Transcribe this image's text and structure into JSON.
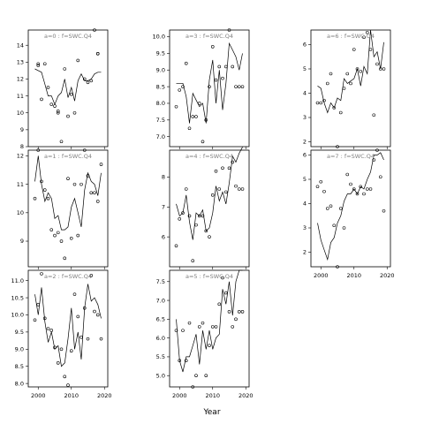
{
  "chart_data": {
    "type": "scatter",
    "xlabel": "Year",
    "x_ticks": [
      2000,
      2010,
      2020
    ],
    "xlim": [
      1997,
      2021
    ],
    "panels": [
      {
        "title": "a=0  :  f=SWC.Q4",
        "col": 0,
        "row": 0,
        "show_x_ticks": false,
        "ylim": [
          8,
          14.9
        ],
        "y_ticks": [
          8,
          9,
          10,
          11,
          12,
          13,
          14
        ],
        "line": {
          "x": [
            1999,
            2000,
            2001,
            2002,
            2003,
            2004,
            2005,
            2006,
            2007,
            2008,
            2009,
            2010,
            2011,
            2012,
            2013,
            2014,
            2015,
            2016,
            2017,
            2018,
            2019
          ],
          "y": [
            12.6,
            12.5,
            12.4,
            11.7,
            11.0,
            11.0,
            10.5,
            11.0,
            11.2,
            12.0,
            10.9,
            11.5,
            10.7,
            11.9,
            12.3,
            11.9,
            11.9,
            12.0,
            12.3,
            12.4,
            12.4
          ]
        },
        "points": {
          "x": [
            2000,
            2000,
            2001,
            2002,
            2003,
            2004,
            2005,
            2006,
            2006,
            2007,
            2008,
            2009,
            2010,
            2011,
            2012,
            2014,
            2015,
            2016,
            2017,
            2018,
            2018
          ],
          "y": [
            12.9,
            12.8,
            10.8,
            12.9,
            11.5,
            10.5,
            10.4,
            10.1,
            10.0,
            8.3,
            12.6,
            9.8,
            11.1,
            10.0,
            13.1,
            12.0,
            11.8,
            11.9,
            14.9,
            13.5,
            13.5
          ]
        }
      },
      {
        "title": "a=1  :  f=SWC.Q4",
        "col": 0,
        "row": 1,
        "show_x_ticks": false,
        "ylim": [
          8.1,
          12.2
        ],
        "y_ticks": [
          9,
          10,
          11,
          12
        ],
        "line": {
          "x": [
            1999,
            2000,
            2001,
            2002,
            2003,
            2004,
            2005,
            2006,
            2007,
            2008,
            2009,
            2010,
            2011,
            2012,
            2013,
            2014,
            2015,
            2016,
            2017,
            2018,
            2019
          ],
          "y": [
            11.1,
            12.0,
            11.0,
            10.4,
            10.7,
            10.5,
            9.8,
            9.9,
            9.4,
            9.4,
            9.5,
            10.2,
            10.5,
            10.0,
            9.5,
            10.8,
            11.4,
            11.1,
            11.0,
            10.6,
            11.4
          ]
        },
        "points": {
          "x": [
            1999,
            2000,
            2001,
            2002,
            2003,
            2004,
            2005,
            2006,
            2007,
            2008,
            2009,
            2010,
            2011,
            2012,
            2013,
            2014,
            2015,
            2016,
            2017,
            2018,
            2019
          ],
          "y": [
            10.5,
            12.2,
            11.1,
            10.8,
            10.5,
            9.4,
            9.2,
            9.3,
            9.0,
            8.4,
            11.2,
            9.1,
            11.0,
            9.2,
            11.0,
            12.2,
            11.3,
            10.7,
            10.7,
            10.4,
            11.7
          ]
        }
      },
      {
        "title": "a=2  :  f=SWC.Q4",
        "col": 0,
        "row": 2,
        "show_x_ticks": true,
        "ylim": [
          7.9,
          11.3
        ],
        "y_ticks": [
          8.0,
          8.5,
          9.0,
          9.5,
          10.0,
          10.5,
          11.0
        ],
        "line": {
          "x": [
            1999,
            2000,
            2001,
            2002,
            2003,
            2004,
            2005,
            2006,
            2007,
            2008,
            2009,
            2010,
            2011,
            2012,
            2013,
            2014,
            2015,
            2016,
            2017,
            2018,
            2019
          ],
          "y": [
            10.6,
            10.0,
            10.8,
            9.8,
            9.2,
            9.5,
            9.0,
            9.1,
            8.5,
            8.6,
            9.3,
            10.2,
            9.0,
            9.5,
            8.7,
            10.2,
            10.9,
            10.4,
            10.5,
            10.3,
            9.9
          ]
        },
        "points": {
          "x": [
            1999,
            2000,
            2001,
            2002,
            2003,
            2004,
            2005,
            2006,
            2007,
            2008,
            2009,
            2010,
            2011,
            2012,
            2013,
            2014,
            2015,
            2016,
            2017,
            2018,
            2019
          ],
          "y": [
            9.85,
            10.3,
            11.2,
            9.9,
            9.6,
            9.55,
            9.05,
            8.6,
            9.0,
            8.2,
            7.95,
            8.95,
            10.6,
            9.95,
            9.35,
            10.2,
            9.3,
            11.15,
            10.1,
            10.0,
            9.3
          ]
        }
      },
      {
        "title": "a=3  :  f=SWC.Q4",
        "col": 1,
        "row": 0,
        "show_x_ticks": false,
        "ylim": [
          6.7,
          10.2
        ],
        "y_ticks": [
          7.0,
          7.5,
          8.0,
          8.5,
          9.0,
          9.5,
          10.0
        ],
        "line": {
          "x": [
            1999,
            2000,
            2001,
            2002,
            2003,
            2004,
            2005,
            2006,
            2007,
            2008,
            2009,
            2010,
            2011,
            2012,
            2013,
            2014,
            2015,
            2016,
            2017,
            2018,
            2019
          ],
          "y": [
            8.6,
            8.6,
            8.6,
            8.2,
            7.4,
            8.3,
            8.1,
            7.9,
            8.0,
            7.4,
            8.7,
            9.3,
            8.0,
            9.0,
            7.8,
            8.6,
            9.8,
            9.6,
            9.4,
            9.0,
            9.5
          ]
        },
        "points": {
          "x": [
            1999,
            2000,
            2001,
            2002,
            2003,
            2004,
            2005,
            2006,
            2007,
            2008,
            2009,
            2010,
            2011,
            2012,
            2013,
            2014,
            2015,
            2016,
            2017,
            2018,
            2019
          ],
          "y": [
            7.9,
            8.4,
            8.5,
            9.2,
            7.25,
            7.6,
            7.6,
            8.0,
            6.85,
            7.5,
            8.5,
            9.7,
            8.7,
            9.1,
            8.75,
            9.1,
            10.2,
            9.1,
            8.5,
            8.5,
            8.5
          ]
        }
      },
      {
        "title": "a=4  :  f=SWC.Q4",
        "col": 1,
        "row": 1,
        "show_x_ticks": false,
        "ylim": [
          5.0,
          8.9
        ],
        "y_ticks": [
          6,
          7,
          8
        ],
        "line": {
          "x": [
            1999,
            2000,
            2001,
            2002,
            2003,
            2004,
            2005,
            2006,
            2007,
            2008,
            2009,
            2010,
            2011,
            2012,
            2013,
            2014,
            2015,
            2016,
            2017,
            2018,
            2019
          ],
          "y": [
            7.1,
            6.7,
            6.8,
            7.4,
            6.5,
            5.9,
            6.8,
            6.7,
            6.9,
            6.2,
            6.3,
            6.8,
            7.7,
            7.2,
            7.5,
            7.1,
            7.8,
            8.7,
            8.5,
            8.8,
            9.0
          ]
        },
        "points": {
          "x": [
            1999,
            2000,
            2001,
            2002,
            2003,
            2004,
            2005,
            2006,
            2007,
            2008,
            2009,
            2010,
            2011,
            2012,
            2013,
            2014,
            2015,
            2016,
            2017,
            2018,
            2019
          ],
          "y": [
            5.7,
            6.6,
            6.8,
            7.6,
            6.7,
            5.2,
            6.4,
            6.7,
            6.7,
            6.2,
            6.0,
            7.4,
            8.2,
            7.6,
            8.3,
            7.5,
            8.3,
            8.5,
            7.7,
            7.6,
            7.6
          ]
        }
      },
      {
        "title": "a=5  :  f=SWC.Q4",
        "col": 1,
        "row": 2,
        "show_x_ticks": true,
        "ylim": [
          4.7,
          7.8
        ],
        "y_ticks": [
          5.0,
          5.5,
          6.0,
          6.5,
          7.0,
          7.5
        ],
        "line": {
          "x": [
            1999,
            2000,
            2001,
            2002,
            2003,
            2004,
            2005,
            2006,
            2007,
            2008,
            2009,
            2010,
            2011,
            2012,
            2013,
            2014,
            2015,
            2016,
            2017,
            2018,
            2019
          ],
          "y": [
            6.5,
            5.4,
            5.1,
            5.5,
            5.5,
            5.8,
            6.1,
            5.3,
            6.2,
            5.7,
            6.2,
            5.7,
            6.0,
            6.1,
            7.3,
            6.9,
            7.5,
            6.6,
            7.5,
            7.8,
            7.8
          ]
        },
        "points": {
          "x": [
            1999,
            2000,
            2001,
            2002,
            2003,
            2004,
            2005,
            2006,
            2007,
            2008,
            2009,
            2010,
            2011,
            2012,
            2013,
            2014,
            2015,
            2016,
            2017,
            2018,
            2019
          ],
          "y": [
            6.2,
            5.4,
            6.2,
            5.4,
            6.4,
            4.7,
            5.0,
            6.3,
            6.4,
            5.0,
            5.8,
            6.3,
            6.3,
            6.9,
            7.6,
            7.2,
            6.7,
            6.3,
            6.5,
            6.7,
            6.7
          ]
        }
      },
      {
        "title": "a=6  :  f=SWC.Q4",
        "col": 2,
        "row": 0,
        "show_x_ticks": false,
        "ylim": [
          1.8,
          6.6
        ],
        "y_ticks": [
          2,
          3,
          4,
          5,
          6
        ],
        "line": {
          "x": [
            1999,
            2000,
            2001,
            2002,
            2003,
            2004,
            2005,
            2006,
            2007,
            2008,
            2009,
            2010,
            2011,
            2012,
            2013,
            2014,
            2015,
            2016,
            2017,
            2018,
            2019
          ],
          "y": [
            4.3,
            4.2,
            3.6,
            3.2,
            3.6,
            3.4,
            3.8,
            3.7,
            4.6,
            4.4,
            4.5,
            4.6,
            5.0,
            4.3,
            5.1,
            4.8,
            6.6,
            5.5,
            5.7,
            5.0,
            6.1
          ]
        },
        "points": {
          "x": [
            1999,
            2000,
            2001,
            2002,
            2003,
            2004,
            2005,
            2006,
            2007,
            2008,
            2009,
            2010,
            2011,
            2012,
            2013,
            2014,
            2015,
            2016,
            2017,
            2018,
            2019
          ],
          "y": [
            3.6,
            3.6,
            3.7,
            4.4,
            4.8,
            3.4,
            1.8,
            3.2,
            4.2,
            4.8,
            4.4,
            5.8,
            5.0,
            4.9,
            6.3,
            6.5,
            5.8,
            3.1,
            5.2,
            5.0,
            5.0
          ]
        }
      },
      {
        "title": "a=7  :  f=SWC.Q4",
        "col": 2,
        "row": 1,
        "show_x_ticks": true,
        "ylim": [
          1.4,
          6.2
        ],
        "y_ticks": [
          2,
          3,
          4,
          5,
          6
        ],
        "line": {
          "x": [
            1999,
            2000,
            2001,
            2002,
            2003,
            2004,
            2005,
            2006,
            2007,
            2008,
            2009,
            2010,
            2011,
            2012,
            2013,
            2014,
            2015,
            2016,
            2017,
            2018,
            2019
          ],
          "y": [
            3.2,
            2.5,
            2.1,
            1.7,
            2.4,
            2.6,
            3.2,
            3.5,
            4.1,
            4.4,
            4.4,
            4.6,
            4.4,
            4.7,
            4.6,
            5.0,
            5.3,
            6.0,
            6.0,
            6.1,
            5.8
          ]
        },
        "points": {
          "x": [
            1999,
            2000,
            2001,
            2002,
            2003,
            2004,
            2005,
            2006,
            2007,
            2008,
            2009,
            2010,
            2011,
            2012,
            2013,
            2014,
            2015,
            2016,
            2017,
            2018,
            2019
          ],
          "y": [
            4.7,
            4.9,
            4.5,
            3.8,
            3.9,
            3.1,
            1.4,
            3.8,
            3.0,
            5.2,
            4.8,
            4.6,
            4.4,
            4.7,
            4.4,
            4.6,
            4.6,
            5.8,
            6.2,
            5.1,
            3.7
          ]
        }
      }
    ]
  }
}
